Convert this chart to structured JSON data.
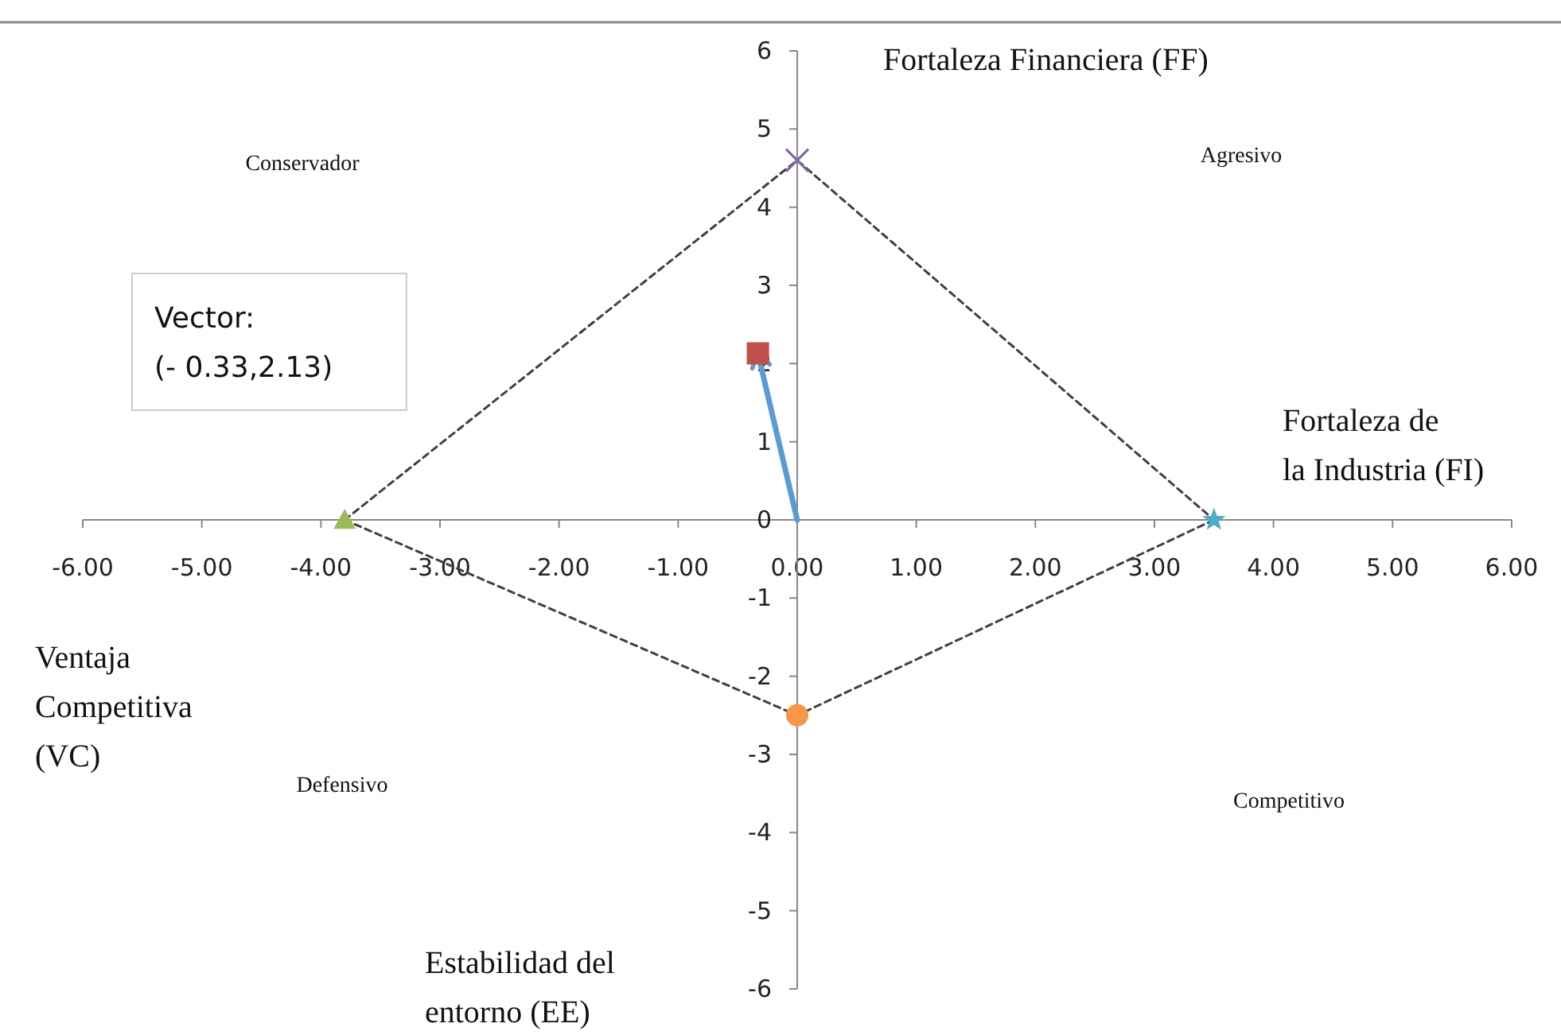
{
  "chart_data": {
    "type": "scatter",
    "xlim": [
      -6,
      6
    ],
    "ylim": [
      -6,
      6
    ],
    "xticks": [
      {
        "value": -6,
        "label": "-6.00"
      },
      {
        "value": -5,
        "label": "-5.00"
      },
      {
        "value": -4,
        "label": "-4.00"
      },
      {
        "value": -3,
        "label": "-3.00"
      },
      {
        "value": -2,
        "label": "-2.00"
      },
      {
        "value": -1,
        "label": "-1.00"
      },
      {
        "value": 0,
        "label": "0.00"
      },
      {
        "value": 1,
        "label": "1.00"
      },
      {
        "value": 2,
        "label": "2.00"
      },
      {
        "value": 3,
        "label": "3.00"
      },
      {
        "value": 4,
        "label": "4.00"
      },
      {
        "value": 5,
        "label": "5.00"
      },
      {
        "value": 6,
        "label": "6.00"
      }
    ],
    "yticks": [
      -6,
      -5,
      -4,
      -3,
      -2,
      -1,
      0,
      1,
      2,
      3,
      4,
      5,
      6
    ],
    "grid": false,
    "legend": false,
    "series": [
      {
        "type": "line",
        "color": "#404040",
        "line_style": "dashed",
        "marker": "none",
        "x": [
          -3.8,
          0,
          3.5
        ],
        "values": [
          0,
          4.6,
          0
        ]
      },
      {
        "type": "line",
        "color": "#404040",
        "line_style": "dashed",
        "marker": "none",
        "x": [
          -3.8,
          0,
          3.5
        ],
        "values": [
          0,
          -2.5,
          0
        ]
      },
      {
        "type": "line",
        "color": "#5b9bd5",
        "line_style": "solid",
        "marker": "none",
        "x": [
          0,
          -0.33
        ],
        "values": [
          0,
          2.13
        ]
      },
      {
        "color": "#8064a2",
        "marker": "cross",
        "x": [
          0
        ],
        "values": [
          4.6
        ]
      },
      {
        "color": "#4bacc6",
        "marker": "star",
        "x": [
          3.5
        ],
        "values": [
          0
        ]
      },
      {
        "color": "#f79646",
        "marker": "circle",
        "x": [
          0
        ],
        "values": [
          -2.5
        ]
      },
      {
        "color": "#9bbb59",
        "marker": "triangle",
        "x": [
          -3.8
        ],
        "values": [
          0
        ]
      },
      {
        "color": "#c0504d",
        "marker": "square",
        "x": [
          -0.33
        ],
        "values": [
          2.13
        ]
      }
    ],
    "annotations": [
      "Conservador",
      "Agresivo",
      "Defensivo",
      "Competitivo",
      "Fortaleza Financiera (FF)",
      "Fortaleza de\nla Industria (FI)",
      "Ventaja\nCompetitiva\n(VC)",
      "Estabilidad del\nentorno (EE)",
      "Vector:\n(- 0.33,2.13)"
    ]
  }
}
